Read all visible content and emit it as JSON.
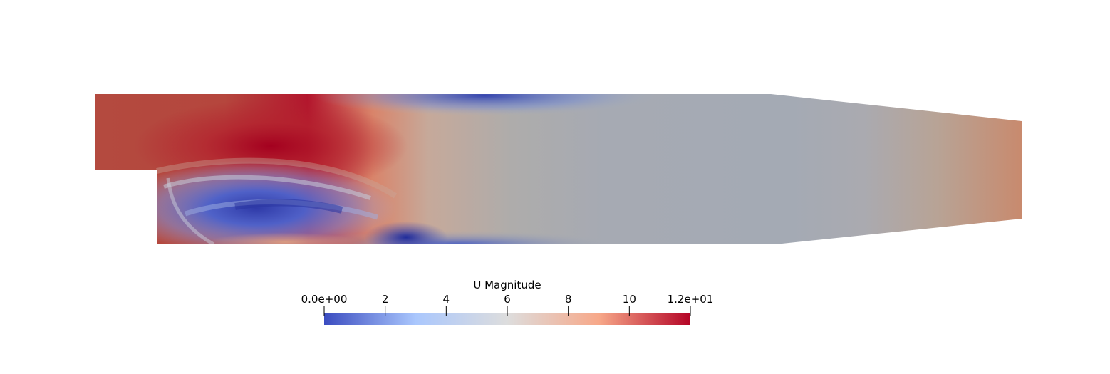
{
  "colorbar": {
    "title": "U Magnitude",
    "range": [
      0,
      12
    ],
    "tick_labels": [
      {
        "value": 0,
        "label": "0.0e+00"
      },
      {
        "value": 2,
        "label": "2"
      },
      {
        "value": 4,
        "label": "4"
      },
      {
        "value": 6,
        "label": "6"
      },
      {
        "value": 8,
        "label": "8"
      },
      {
        "value": 10,
        "label": "10"
      },
      {
        "value": 12,
        "label": "1.2e+01"
      }
    ],
    "colormap": "cool-to-warm",
    "colors": {
      "low": "#3b4cc0",
      "light_blue": "#aac7fd",
      "mid": "#dddddd",
      "light_red": "#f7a889",
      "high": "#b40426"
    }
  }
}
